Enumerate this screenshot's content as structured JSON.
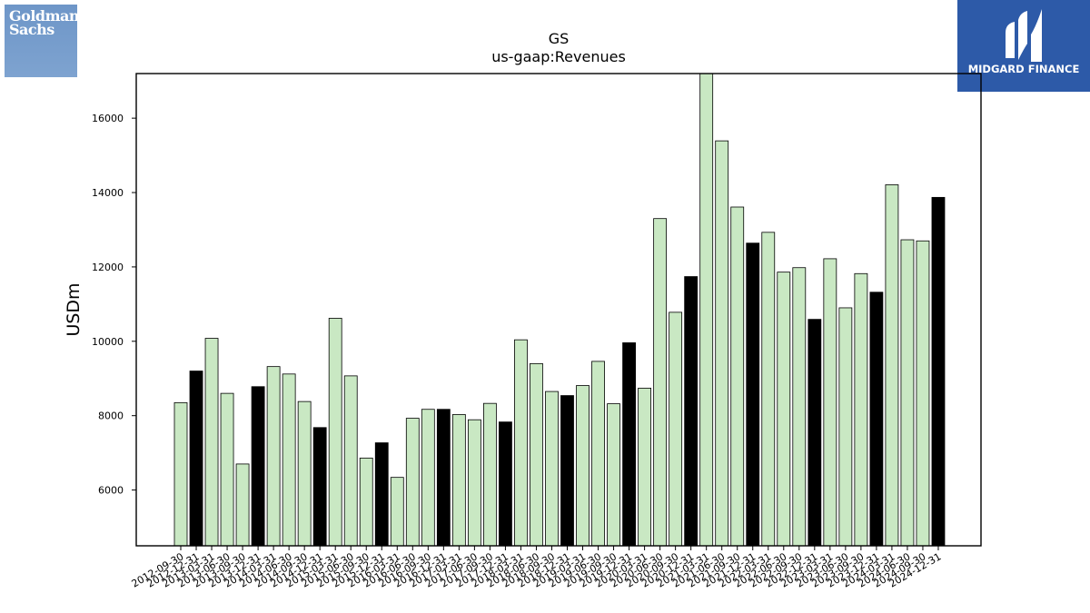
{
  "logos": {
    "left": {
      "line1": "Goldman",
      "line2": "Sachs",
      "color": "#7ea3d0"
    },
    "right": {
      "text": "MIDGARD FINANCE",
      "color": "#2d5aa8"
    }
  },
  "chart_data": {
    "type": "bar",
    "title": "GS",
    "subtitle": "us-gaap:Revenues",
    "xlabel": "",
    "ylabel": "USDm",
    "ylim": [
      4500,
      17200
    ],
    "yticks": [
      6000,
      8000,
      10000,
      12000,
      14000,
      16000
    ],
    "grid": false,
    "colors": {
      "quarter": "#c9e8c3",
      "year_end": "#000000",
      "edge": "#000000"
    },
    "categories": [
      "2012-09-30",
      "2012-12-31",
      "2013-03-31",
      "2013-06-30",
      "2013-09-30",
      "2013-12-31",
      "2014-03-31",
      "2014-06-30",
      "2014-09-30",
      "2014-12-31",
      "2015-03-31",
      "2015-06-30",
      "2015-09-30",
      "2015-12-31",
      "2016-03-31",
      "2016-06-30",
      "2016-09-30",
      "2016-12-31",
      "2017-03-31",
      "2017-06-30",
      "2017-09-30",
      "2017-12-31",
      "2018-03-31",
      "2018-06-30",
      "2018-09-30",
      "2018-12-31",
      "2019-03-31",
      "2019-06-30",
      "2019-09-30",
      "2019-12-31",
      "2020-03-31",
      "2020-06-30",
      "2020-09-30",
      "2020-12-31",
      "2021-03-31",
      "2021-06-30",
      "2021-09-30",
      "2021-12-31",
      "2022-03-31",
      "2022-06-30",
      "2022-09-30",
      "2022-12-31",
      "2023-03-31",
      "2023-06-30",
      "2023-09-30",
      "2023-12-31",
      "2024-03-31",
      "2024-06-30",
      "2024-09-30",
      "2024-12-31"
    ],
    "values": [
      8350,
      9200,
      10080,
      8600,
      6700,
      8780,
      9320,
      9120,
      8380,
      7680,
      10620,
      9070,
      6860,
      7270,
      6340,
      7930,
      8170,
      8170,
      8030,
      7890,
      8330,
      7830,
      10040,
      9400,
      8650,
      8540,
      8810,
      9460,
      8320,
      9960,
      8740,
      13300,
      10780,
      11740,
      17700,
      15390,
      13610,
      12640,
      12930,
      11860,
      11980,
      10590,
      12220,
      10900,
      11820,
      11320,
      14210,
      12730,
      12700,
      13870
    ],
    "highlighted": [
      false,
      true,
      false,
      false,
      false,
      true,
      false,
      false,
      false,
      true,
      false,
      false,
      false,
      true,
      false,
      false,
      false,
      true,
      false,
      false,
      false,
      true,
      false,
      false,
      false,
      true,
      false,
      false,
      false,
      true,
      false,
      false,
      false,
      true,
      false,
      false,
      false,
      true,
      false,
      false,
      false,
      true,
      false,
      false,
      false,
      true,
      false,
      false,
      false,
      true
    ]
  }
}
